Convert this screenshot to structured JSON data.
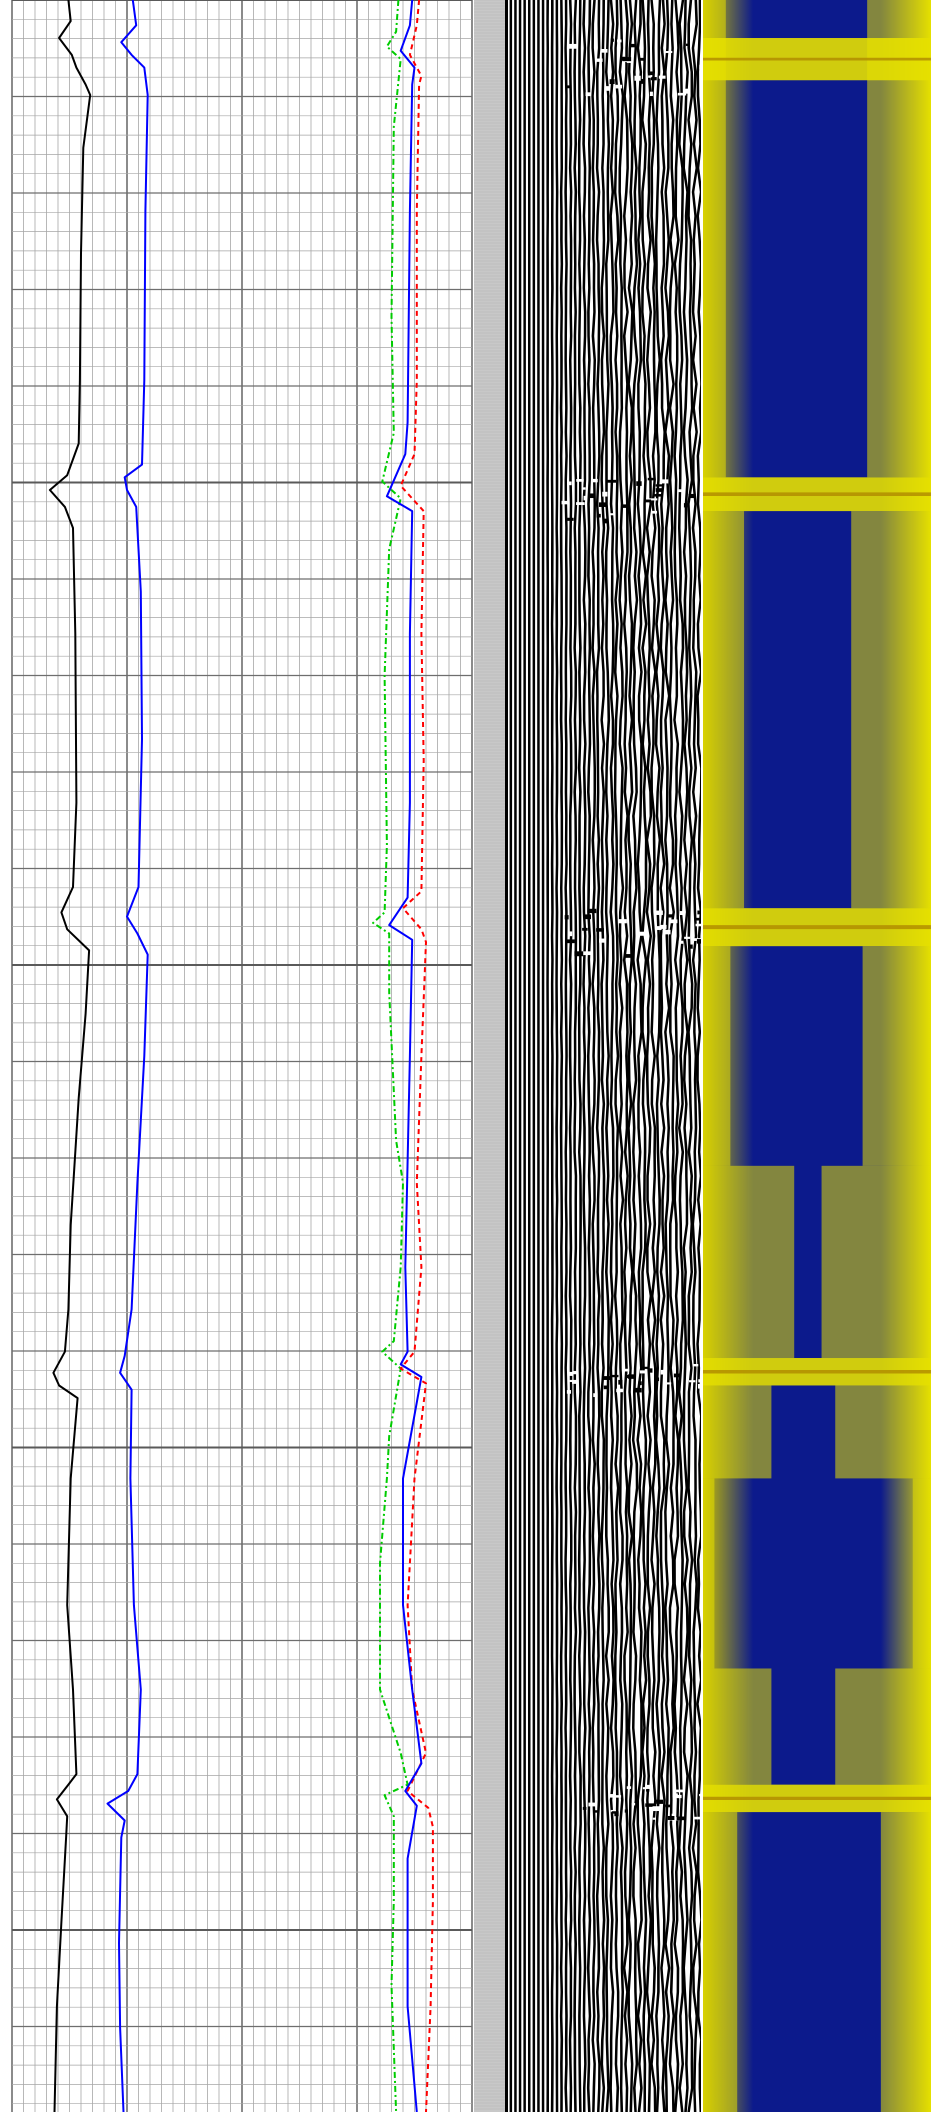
{
  "chart_data": {
    "type": "line",
    "title": "",
    "depth_axis": {
      "direction": "down",
      "grid": true
    },
    "colors": {
      "grid_minor": "#a6a6a6",
      "grid_major": "#6e6e6e",
      "background": "#ffffff",
      "separator": "#c8c8c8",
      "image_dark": "#000000",
      "image_light": "#ffffff",
      "map_low": "#0c1a8c",
      "map_high": "#e6e000",
      "map_peak": "#b08a00"
    },
    "scales": {
      "track1": [
        0,
        20
      ],
      "track2": [
        0,
        20
      ],
      "track3": [
        0,
        10
      ]
    },
    "depth_range": [
      0,
      1
    ],
    "series": [
      {
        "color": "#000000",
        "dash": "",
        "track": "track1",
        "points": [
          [
            0.0,
            4.9
          ],
          [
            0.01,
            5.1
          ],
          [
            0.018,
            4.1
          ],
          [
            0.026,
            5.2
          ],
          [
            0.032,
            5.6
          ],
          [
            0.04,
            6.4
          ],
          [
            0.045,
            6.8
          ],
          [
            0.07,
            6.2
          ],
          [
            0.12,
            6.0
          ],
          [
            0.18,
            5.9
          ],
          [
            0.21,
            5.8
          ],
          [
            0.225,
            4.8
          ],
          [
            0.232,
            3.3
          ],
          [
            0.24,
            4.6
          ],
          [
            0.25,
            5.3
          ],
          [
            0.3,
            5.5
          ],
          [
            0.38,
            5.6
          ],
          [
            0.42,
            5.3
          ],
          [
            0.432,
            4.3
          ],
          [
            0.44,
            4.8
          ],
          [
            0.45,
            6.7
          ],
          [
            0.48,
            6.4
          ],
          [
            0.52,
            5.8
          ],
          [
            0.58,
            5.1
          ],
          [
            0.62,
            4.9
          ],
          [
            0.64,
            4.6
          ],
          [
            0.65,
            3.6
          ],
          [
            0.656,
            4.1
          ],
          [
            0.662,
            5.7
          ],
          [
            0.7,
            5.1
          ],
          [
            0.76,
            4.8
          ],
          [
            0.8,
            5.3
          ],
          [
            0.84,
            5.6
          ],
          [
            0.845,
            4.9
          ],
          [
            0.852,
            3.9
          ],
          [
            0.86,
            4.8
          ],
          [
            0.87,
            4.7
          ],
          [
            0.91,
            4.3
          ],
          [
            0.95,
            3.9
          ],
          [
            1.0,
            3.7
          ]
        ]
      },
      {
        "color": "#0000ff",
        "dash": "",
        "track": "track1",
        "points": [
          [
            0.0,
            10.5
          ],
          [
            0.012,
            10.8
          ],
          [
            0.02,
            9.5
          ],
          [
            0.026,
            10.4
          ],
          [
            0.032,
            11.5
          ],
          [
            0.045,
            11.8
          ],
          [
            0.1,
            11.6
          ],
          [
            0.18,
            11.5
          ],
          [
            0.22,
            11.3
          ],
          [
            0.226,
            9.8
          ],
          [
            0.232,
            10.0
          ],
          [
            0.24,
            10.8
          ],
          [
            0.28,
            11.2
          ],
          [
            0.35,
            11.3
          ],
          [
            0.42,
            11.0
          ],
          [
            0.434,
            10.0
          ],
          [
            0.442,
            10.9
          ],
          [
            0.452,
            11.8
          ],
          [
            0.5,
            11.5
          ],
          [
            0.56,
            10.9
          ],
          [
            0.62,
            10.4
          ],
          [
            0.642,
            9.8
          ],
          [
            0.65,
            9.4
          ],
          [
            0.658,
            10.4
          ],
          [
            0.7,
            10.3
          ],
          [
            0.76,
            10.6
          ],
          [
            0.8,
            11.2
          ],
          [
            0.84,
            10.9
          ],
          [
            0.848,
            10.1
          ],
          [
            0.854,
            8.3
          ],
          [
            0.862,
            9.8
          ],
          [
            0.87,
            9.5
          ],
          [
            0.92,
            9.3
          ],
          [
            0.96,
            9.4
          ],
          [
            1.0,
            9.7
          ]
        ]
      },
      {
        "color": "#00cc00",
        "dash": "6,3,2,3",
        "track": "track3",
        "points": [
          [
            0.0,
            6.8
          ],
          [
            0.015,
            6.7
          ],
          [
            0.022,
            6.3
          ],
          [
            0.028,
            6.9
          ],
          [
            0.06,
            6.6
          ],
          [
            0.15,
            6.5
          ],
          [
            0.205,
            6.6
          ],
          [
            0.228,
            6.1
          ],
          [
            0.236,
            6.9
          ],
          [
            0.26,
            6.4
          ],
          [
            0.32,
            6.2
          ],
          [
            0.4,
            6.3
          ],
          [
            0.432,
            6.2
          ],
          [
            0.437,
            5.7
          ],
          [
            0.442,
            6.4
          ],
          [
            0.47,
            6.4
          ],
          [
            0.54,
            6.7
          ],
          [
            0.56,
            7.0
          ],
          [
            0.6,
            6.9
          ],
          [
            0.635,
            6.6
          ],
          [
            0.64,
            6.1
          ],
          [
            0.648,
            6.9
          ],
          [
            0.68,
            6.4
          ],
          [
            0.7,
            6.3
          ],
          [
            0.74,
            6.0
          ],
          [
            0.8,
            6.0
          ],
          [
            0.83,
            6.9
          ],
          [
            0.845,
            7.2
          ],
          [
            0.85,
            6.2
          ],
          [
            0.86,
            6.6
          ],
          [
            0.9,
            6.6
          ],
          [
            0.94,
            6.5
          ],
          [
            1.0,
            6.7
          ]
        ]
      },
      {
        "color": "#ff0000",
        "dash": "5,4",
        "track": "track3",
        "points": [
          [
            0.0,
            7.7
          ],
          [
            0.012,
            7.6
          ],
          [
            0.026,
            7.3
          ],
          [
            0.036,
            7.8
          ],
          [
            0.04,
            7.7
          ],
          [
            0.1,
            7.6
          ],
          [
            0.18,
            7.6
          ],
          [
            0.215,
            7.5
          ],
          [
            0.23,
            6.9
          ],
          [
            0.242,
            7.9
          ],
          [
            0.3,
            7.8
          ],
          [
            0.36,
            7.9
          ],
          [
            0.422,
            7.8
          ],
          [
            0.43,
            7.0
          ],
          [
            0.44,
            7.8
          ],
          [
            0.446,
            8.0
          ],
          [
            0.5,
            7.8
          ],
          [
            0.56,
            7.6
          ],
          [
            0.6,
            7.8
          ],
          [
            0.64,
            7.5
          ],
          [
            0.648,
            6.9
          ],
          [
            0.655,
            8.0
          ],
          [
            0.7,
            7.5
          ],
          [
            0.76,
            7.2
          ],
          [
            0.8,
            7.4
          ],
          [
            0.83,
            8.0
          ],
          [
            0.848,
            7.2
          ],
          [
            0.856,
            8.1
          ],
          [
            0.865,
            8.3
          ],
          [
            0.9,
            8.3
          ],
          [
            0.95,
            8.2
          ],
          [
            1.0,
            8.0
          ]
        ]
      },
      {
        "color": "#0000ff",
        "dash": "",
        "track": "track3",
        "points": [
          [
            0.0,
            7.4
          ],
          [
            0.012,
            7.3
          ],
          [
            0.024,
            6.9
          ],
          [
            0.032,
            7.5
          ],
          [
            0.04,
            7.4
          ],
          [
            0.1,
            7.3
          ],
          [
            0.2,
            7.2
          ],
          [
            0.215,
            7.1
          ],
          [
            0.235,
            6.3
          ],
          [
            0.242,
            7.4
          ],
          [
            0.3,
            7.3
          ],
          [
            0.38,
            7.3
          ],
          [
            0.425,
            7.2
          ],
          [
            0.438,
            6.4
          ],
          [
            0.445,
            7.4
          ],
          [
            0.5,
            7.3
          ],
          [
            0.55,
            7.2
          ],
          [
            0.6,
            7.1
          ],
          [
            0.64,
            7.2
          ],
          [
            0.646,
            6.9
          ],
          [
            0.652,
            7.8
          ],
          [
            0.7,
            7.0
          ],
          [
            0.76,
            7.0
          ],
          [
            0.8,
            7.4
          ],
          [
            0.835,
            7.8
          ],
          [
            0.848,
            7.1
          ],
          [
            0.855,
            7.6
          ],
          [
            0.88,
            7.2
          ],
          [
            0.95,
            7.2
          ],
          [
            1.0,
            7.6
          ]
        ]
      }
    ],
    "beds": [
      {
        "top": 0.018,
        "base": 0.038,
        "intensity": 0.7
      },
      {
        "top": 0.226,
        "base": 0.242,
        "intensity": 0.9
      },
      {
        "top": 0.43,
        "base": 0.448,
        "intensity": 1.0
      },
      {
        "top": 0.643,
        "base": 0.656,
        "intensity": 0.85
      },
      {
        "top": 0.845,
        "base": 0.858,
        "intensity": 0.8
      }
    ],
    "bed_shading": [
      {
        "top": 0.0,
        "base": 0.226,
        "left": 0.1,
        "right": 0.28
      },
      {
        "top": 0.242,
        "base": 0.43,
        "left": 0.18,
        "right": 0.35
      },
      {
        "top": 0.448,
        "base": 0.552,
        "left": 0.12,
        "right": 0.3
      },
      {
        "top": 0.552,
        "base": 0.643,
        "left": 0.4,
        "right": 0.48
      },
      {
        "top": 0.656,
        "base": 0.7,
        "left": 0.3,
        "right": 0.42
      },
      {
        "top": 0.7,
        "base": 0.79,
        "left": 0.05,
        "right": 0.08
      },
      {
        "top": 0.79,
        "base": 0.845,
        "left": 0.3,
        "right": 0.42
      },
      {
        "top": 0.858,
        "base": 1.0,
        "left": 0.15,
        "right": 0.22
      }
    ]
  }
}
